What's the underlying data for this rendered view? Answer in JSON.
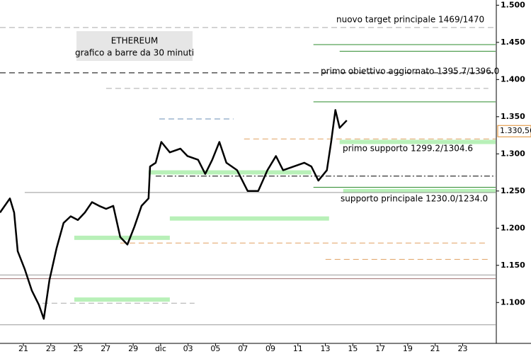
{
  "chart_data": {
    "type": "line",
    "title": "ETHEREUM",
    "subtitle": "grafico a barre da 30 minuti",
    "x": [
      -0.7,
      0.02,
      0.33,
      0.59,
      1.1,
      1.62,
      2.13,
      2.49,
      2.9,
      3.42,
      3.93,
      4.45,
      4.97,
      5.48,
      6.0,
      6.52,
      7.03,
      7.55,
      8.06,
      8.58,
      9.09,
      9.61,
      10.12,
      10.23,
      10.64,
      11.05,
      11.67,
      12.44,
      12.96,
      13.73,
      14.25,
      14.76,
      15.28,
      15.79,
      16.57,
      17.34,
      18.11,
      18.78,
      19.4,
      19.92,
      20.69,
      21.46,
      21.98,
      22.49,
      23.11,
      23.42,
      23.73,
      24.04,
      24.56
    ],
    "series": [
      {
        "name": "ETHEREUM",
        "color": "#000000",
        "values": [
          1221,
          1240,
          1221,
          1169,
          1145,
          1116,
          1097,
          1078,
          1130,
          1173,
          1207,
          1216,
          1211,
          1221,
          1235,
          1230,
          1226,
          1230,
          1188,
          1178,
          1202,
          1230,
          1240,
          1283,
          1288,
          1316,
          1302,
          1307,
          1297,
          1292,
          1273,
          1292,
          1316,
          1288,
          1278,
          1250,
          1250,
          1278,
          1297,
          1278,
          1283,
          1288,
          1283,
          1264,
          1278,
          1316,
          1359,
          1335,
          1345
        ]
      }
    ],
    "last_price": {
      "value": 1330.56,
      "label": "1.330,56"
    },
    "levels": [
      {
        "value": 1470,
        "color": "#aaaaaa",
        "style": "dashed",
        "from": -0.7,
        "to": 35.4
      },
      {
        "value": 1447,
        "color": "#2e8b2e",
        "style": "solid",
        "from": 22.13,
        "to": 35.4
      },
      {
        "value": 1438,
        "color": "#2e8b2e",
        "style": "solid",
        "from": 24.04,
        "to": 35.4
      },
      {
        "value": 1409,
        "color": "#000000",
        "style": "dashed",
        "from": -0.7,
        "to": 35.4
      },
      {
        "value": 1388,
        "color": "#aaaaaa",
        "style": "dashed",
        "from": 7.03,
        "to": 34.87
      },
      {
        "value": 1370,
        "color": "#2e8b2e",
        "style": "solid",
        "from": 22.13,
        "to": 35.4
      },
      {
        "value": 1347,
        "color": "#6a8fb5",
        "style": "dashed",
        "from": 10.9,
        "to": 16.31
      },
      {
        "value": 1320,
        "color": "#e0a060",
        "style": "dashed",
        "from": 17.08,
        "to": 35.4
      },
      {
        "value": 1316,
        "color": "#b8f0b8",
        "style": "band",
        "from": 24.04,
        "to": 35.4
      },
      {
        "value": 1275,
        "color": "#b8f0b8",
        "style": "band",
        "from": 10.12,
        "to": 21.98
      },
      {
        "value": 1270,
        "color": "#000000",
        "style": "dashdot",
        "from": 10.64,
        "to": 35.4
      },
      {
        "value": 1255,
        "color": "#2e8b2e",
        "style": "solid",
        "from": 22.13,
        "to": 35.4
      },
      {
        "value": 1250,
        "color": "#b8f0b8",
        "style": "band",
        "from": 24.3,
        "to": 35.4
      },
      {
        "value": 1248,
        "color": "#999999",
        "style": "solid",
        "from": 1.1,
        "to": 35.4
      },
      {
        "value": 1213,
        "color": "#b8f0b8",
        "style": "band",
        "from": 11.67,
        "to": 23.27
      },
      {
        "value": 1187,
        "color": "#b8f0b8",
        "style": "band",
        "from": 4.71,
        "to": 11.67
      },
      {
        "value": 1180,
        "color": "#e0a060",
        "style": "dashed",
        "from": 8.06,
        "to": 34.87
      },
      {
        "value": 1158,
        "color": "#e0a060",
        "style": "dashed",
        "from": 23.01,
        "to": 34.87
      },
      {
        "value": 1137,
        "color": "#999999",
        "style": "solid",
        "from": -0.7,
        "to": 35.4
      },
      {
        "value": 1132,
        "color": "#a07070",
        "style": "solid",
        "from": -0.7,
        "to": 35.4
      },
      {
        "value": 1104,
        "color": "#b8f0b8",
        "style": "band",
        "from": 4.71,
        "to": 11.67
      },
      {
        "value": 1099,
        "color": "#aaaaaa",
        "style": "dashed",
        "from": 2.39,
        "to": 13.47
      },
      {
        "value": 1070,
        "color": "#999999",
        "style": "solid",
        "from": -0.7,
        "to": 35.4
      }
    ],
    "annotations": [
      "nuovo target principale 1469/1470",
      "primo obiettivo aggiornato 1395.7/1396.0",
      "primo supporto 1299.2/1304.6",
      "supporto principale 1230.0/1234.0"
    ],
    "xlim": [
      -0.7,
      35.4
    ],
    "ylim": [
      1045,
      1507
    ],
    "xticks": [
      {
        "value": 1,
        "label": "21"
      },
      {
        "value": 3,
        "label": "23"
      },
      {
        "value": 5,
        "label": "25"
      },
      {
        "value": 7,
        "label": "27"
      },
      {
        "value": 9,
        "label": "29"
      },
      {
        "value": 11,
        "label": "dic"
      },
      {
        "value": 13,
        "label": "03"
      },
      {
        "value": 15,
        "label": "05"
      },
      {
        "value": 17,
        "label": "07"
      },
      {
        "value": 19,
        "label": "09"
      },
      {
        "value": 21,
        "label": "11"
      },
      {
        "value": 23,
        "label": "13"
      },
      {
        "value": 25,
        "label": "15"
      },
      {
        "value": 27,
        "label": "17"
      },
      {
        "value": 29,
        "label": "19"
      },
      {
        "value": 31,
        "label": "21"
      },
      {
        "value": 33,
        "label": "23"
      }
    ],
    "yticks": [
      {
        "value": 1100,
        "label": "1.100"
      },
      {
        "value": 1150,
        "label": "1.150"
      },
      {
        "value": 1200,
        "label": "1.200"
      },
      {
        "value": 1250,
        "label": "1.250"
      },
      {
        "value": 1300,
        "label": "1.300"
      },
      {
        "value": 1350,
        "label": "1.350"
      },
      {
        "value": 1400,
        "label": "1.400"
      },
      {
        "value": 1450,
        "label": "1.450"
      },
      {
        "value": 1500,
        "label": "1.500"
      }
    ]
  }
}
